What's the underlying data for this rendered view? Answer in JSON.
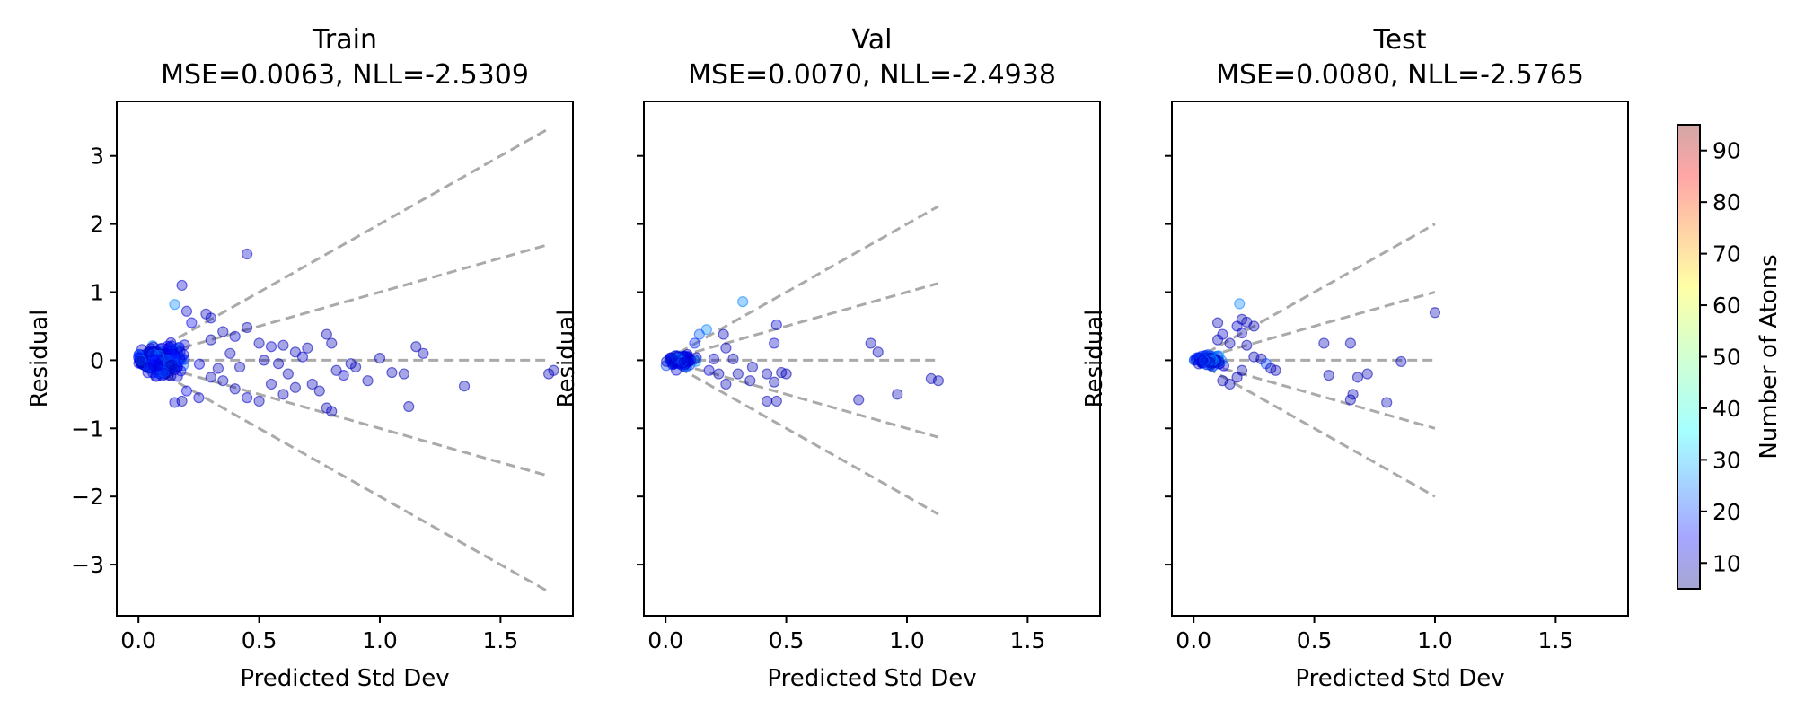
{
  "chart_data": {
    "type": "scatter",
    "shared_x_range": [
      -0.09,
      1.8
    ],
    "shared_y_range": [
      -3.75,
      3.8
    ],
    "x_ticks": [
      0.0,
      0.5,
      1.0,
      1.5
    ],
    "x_tick_labels": [
      "0.0",
      "0.5",
      "1.0",
      "1.5"
    ],
    "y_ticks": [
      -3,
      -2,
      -1,
      0,
      1,
      2,
      3
    ],
    "y_tick_labels": [
      "−3",
      "−2",
      "−1",
      "0",
      "1",
      "2",
      "3"
    ],
    "guide_line_multipliers": [
      2,
      1,
      0,
      -1,
      -2
    ],
    "guide_line_color": "#aaaaaa",
    "point_alpha": 0.35,
    "grid": false,
    "colorbar": {
      "label": "Number of Atoms",
      "range": [
        5,
        95
      ],
      "ticks": [
        10,
        20,
        30,
        40,
        50,
        60,
        70,
        80,
        90
      ],
      "tick_labels": [
        "10",
        "20",
        "30",
        "40",
        "50",
        "60",
        "70",
        "80",
        "90"
      ],
      "colormap": "jet",
      "alpha": 0.35
    },
    "panels": [
      {
        "title_line1": "Train",
        "title_line2": "MSE=0.0063, NLL=-2.5309",
        "xlabel": "Predicted Std Dev",
        "ylabel": "Residual",
        "guide_x_max": 1.7,
        "dense_cluster": {
          "x_center": 0.09,
          "x_spread": 0.09,
          "y_spread": 0.22,
          "count": 260
        },
        "points": [
          [
            0.45,
            1.56,
            12
          ],
          [
            0.18,
            1.1,
            12
          ],
          [
            0.15,
            0.82,
            28
          ],
          [
            0.2,
            0.72,
            12
          ],
          [
            0.28,
            0.68,
            10
          ],
          [
            0.3,
            0.62,
            12
          ],
          [
            0.22,
            0.55,
            15
          ],
          [
            0.35,
            0.42,
            10
          ],
          [
            0.4,
            0.35,
            12
          ],
          [
            0.45,
            0.48,
            10
          ],
          [
            0.5,
            0.25,
            10
          ],
          [
            0.55,
            0.2,
            12
          ],
          [
            0.6,
            0.22,
            10
          ],
          [
            0.65,
            0.12,
            10
          ],
          [
            0.68,
            0.05,
            12
          ],
          [
            0.7,
            0.18,
            10
          ],
          [
            0.78,
            0.38,
            10
          ],
          [
            0.8,
            0.25,
            10
          ],
          [
            0.82,
            -0.15,
            10
          ],
          [
            0.85,
            -0.22,
            12
          ],
          [
            0.88,
            -0.05,
            10
          ],
          [
            0.95,
            -0.3,
            10
          ],
          [
            1.0,
            0.03,
            10
          ],
          [
            1.05,
            -0.18,
            10
          ],
          [
            1.1,
            -0.2,
            10
          ],
          [
            1.12,
            -0.68,
            10
          ],
          [
            1.15,
            0.2,
            10
          ],
          [
            1.18,
            0.1,
            10
          ],
          [
            1.35,
            -0.38,
            10
          ],
          [
            1.7,
            -0.2,
            10
          ],
          [
            1.72,
            -0.15,
            10
          ],
          [
            0.78,
            -0.7,
            10
          ],
          [
            0.8,
            -0.75,
            10
          ],
          [
            0.65,
            -0.4,
            10
          ],
          [
            0.6,
            -0.5,
            10
          ],
          [
            0.55,
            -0.35,
            10
          ],
          [
            0.5,
            -0.6,
            10
          ],
          [
            0.45,
            -0.55,
            12
          ],
          [
            0.4,
            -0.42,
            10
          ],
          [
            0.35,
            -0.3,
            10
          ],
          [
            0.3,
            -0.25,
            10
          ],
          [
            0.25,
            -0.55,
            12
          ],
          [
            0.2,
            -0.45,
            15
          ],
          [
            0.18,
            -0.6,
            10
          ],
          [
            0.15,
            -0.62,
            12
          ],
          [
            0.38,
            0.1,
            10
          ],
          [
            0.42,
            -0.1,
            10
          ],
          [
            0.52,
            0.0,
            10
          ],
          [
            0.58,
            -0.05,
            10
          ],
          [
            0.62,
            -0.2,
            10
          ],
          [
            0.72,
            -0.35,
            10
          ],
          [
            0.75,
            -0.45,
            10
          ],
          [
            0.9,
            -0.1,
            10
          ],
          [
            0.3,
            0.3,
            10
          ],
          [
            0.33,
            -0.12,
            10
          ]
        ]
      },
      {
        "title_line1": "Val",
        "title_line2": "MSE=0.0070, NLL=-2.4938",
        "xlabel": "Predicted Std Dev",
        "ylabel": "Residual",
        "guide_x_max": 1.13,
        "dense_cluster": {
          "x_center": 0.06,
          "x_spread": 0.05,
          "y_spread": 0.1,
          "count": 90
        },
        "points": [
          [
            0.32,
            0.86,
            28
          ],
          [
            0.46,
            0.52,
            12
          ],
          [
            0.45,
            0.25,
            12
          ],
          [
            0.42,
            -0.2,
            10
          ],
          [
            0.45,
            -0.32,
            10
          ],
          [
            0.48,
            -0.18,
            10
          ],
          [
            0.5,
            -0.2,
            10
          ],
          [
            0.42,
            -0.6,
            10
          ],
          [
            0.46,
            -0.6,
            10
          ],
          [
            0.35,
            -0.3,
            10
          ],
          [
            0.3,
            -0.2,
            10
          ],
          [
            0.25,
            -0.35,
            10
          ],
          [
            0.28,
            0.02,
            10
          ],
          [
            0.2,
            0.02,
            12
          ],
          [
            0.17,
            0.45,
            28
          ],
          [
            0.14,
            0.38,
            24
          ],
          [
            0.12,
            0.25,
            20
          ],
          [
            0.24,
            0.38,
            10
          ],
          [
            0.25,
            0.18,
            10
          ],
          [
            0.85,
            0.25,
            10
          ],
          [
            0.88,
            0.12,
            10
          ],
          [
            0.8,
            -0.58,
            10
          ],
          [
            0.96,
            -0.5,
            10
          ],
          [
            1.1,
            -0.27,
            10
          ],
          [
            1.13,
            -0.3,
            10
          ],
          [
            0.36,
            -0.1,
            10
          ],
          [
            0.22,
            -0.2,
            10
          ],
          [
            0.18,
            -0.15,
            12
          ]
        ]
      },
      {
        "title_line1": "Test",
        "title_line2": "MSE=0.0080, NLL=-2.5765",
        "xlabel": "Predicted Std Dev",
        "ylabel": "Residual",
        "guide_x_max": 1.0,
        "dense_cluster": {
          "x_center": 0.06,
          "x_spread": 0.05,
          "y_spread": 0.1,
          "count": 90
        },
        "points": [
          [
            0.19,
            0.83,
            28
          ],
          [
            0.2,
            0.6,
            10
          ],
          [
            0.22,
            0.56,
            10
          ],
          [
            0.18,
            0.5,
            12
          ],
          [
            0.2,
            0.4,
            10
          ],
          [
            0.25,
            0.5,
            10
          ],
          [
            0.12,
            0.38,
            12
          ],
          [
            0.1,
            0.3,
            10
          ],
          [
            0.15,
            0.25,
            10
          ],
          [
            0.22,
            0.22,
            10
          ],
          [
            0.25,
            0.05,
            10
          ],
          [
            0.28,
            0.02,
            10
          ],
          [
            0.3,
            -0.05,
            22
          ],
          [
            0.32,
            -0.12,
            10
          ],
          [
            0.34,
            -0.15,
            10
          ],
          [
            0.2,
            -0.15,
            10
          ],
          [
            0.18,
            -0.25,
            10
          ],
          [
            0.15,
            -0.35,
            10
          ],
          [
            0.12,
            -0.3,
            10
          ],
          [
            0.54,
            0.25,
            10
          ],
          [
            0.65,
            0.25,
            10
          ],
          [
            0.56,
            -0.22,
            10
          ],
          [
            0.68,
            -0.25,
            10
          ],
          [
            0.72,
            -0.2,
            10
          ],
          [
            0.66,
            -0.5,
            10
          ],
          [
            0.65,
            -0.58,
            10
          ],
          [
            0.8,
            -0.62,
            10
          ],
          [
            0.86,
            -0.02,
            10
          ],
          [
            1.0,
            0.7,
            10
          ],
          [
            0.1,
            0.55,
            10
          ]
        ]
      }
    ]
  }
}
